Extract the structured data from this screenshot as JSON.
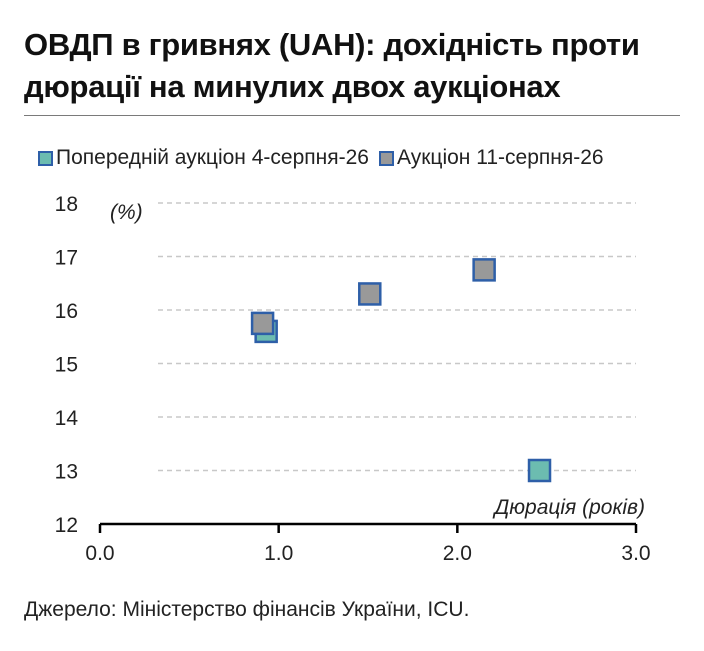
{
  "title": "ОВДП в гривнях (UAH): дохідність проти дюрації на минулих двох аукціонах",
  "source": "Джерело: Міністерство фінансів України, ICU.",
  "colors": {
    "previous_fill": "#6cbcb0",
    "current_fill": "#999999",
    "marker_border": "#2e5fa8",
    "grid": "#c8c8c8",
    "axis": "#000000"
  },
  "chart_data": {
    "type": "scatter",
    "ylabel": "(%)",
    "xlabel": "Дюрація (років)",
    "xlim": [
      0,
      3
    ],
    "ylim": [
      12,
      18
    ],
    "xticks": [
      "0.0",
      "1.0",
      "2.0",
      "3.0"
    ],
    "yticks": [
      "12",
      "13",
      "14",
      "15",
      "16",
      "17",
      "18"
    ],
    "grid": true,
    "legend_position": "top",
    "series": [
      {
        "name": "Попередній аукціон 4-серпня-26",
        "points": [
          {
            "x": 0.93,
            "y": 15.6
          },
          {
            "x": 2.46,
            "y": 13.0
          }
        ]
      },
      {
        "name": "Аукціон 11-серпня-26",
        "points": [
          {
            "x": 0.91,
            "y": 15.75
          },
          {
            "x": 1.51,
            "y": 16.3
          },
          {
            "x": 2.15,
            "y": 16.75
          }
        ]
      }
    ]
  }
}
